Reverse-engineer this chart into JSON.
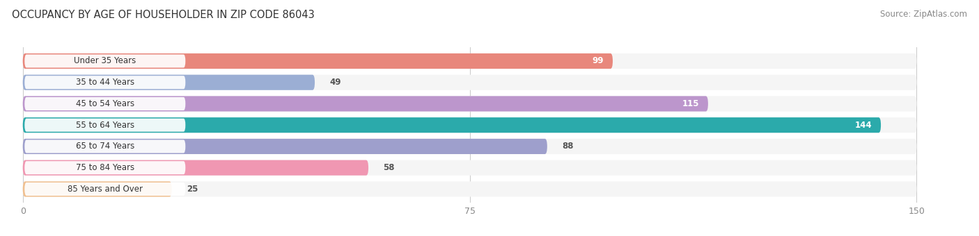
{
  "title": "OCCUPANCY BY AGE OF HOUSEHOLDER IN ZIP CODE 86043",
  "source": "Source: ZipAtlas.com",
  "categories": [
    "Under 35 Years",
    "35 to 44 Years",
    "45 to 54 Years",
    "55 to 64 Years",
    "65 to 74 Years",
    "75 to 84 Years",
    "85 Years and Over"
  ],
  "values": [
    99,
    49,
    115,
    144,
    88,
    58,
    25
  ],
  "bar_colors": [
    "#E8877C",
    "#9BAED4",
    "#BC96CC",
    "#2BAAAB",
    "#9E9FCC",
    "#F097B2",
    "#F0C090"
  ],
  "bar_bg_colors": [
    "#EAEAEA",
    "#EAEAEA",
    "#EAEAEA",
    "#EAEAEA",
    "#EAEAEA",
    "#EAEAEA",
    "#EAEAEA"
  ],
  "xlim": [
    0,
    150
  ],
  "xticks": [
    0,
    75,
    150
  ],
  "background_color": "#FFFFFF",
  "chart_bg": "#F5F5F5",
  "title_fontsize": 10.5,
  "source_fontsize": 8.5,
  "label_fontsize": 8.5,
  "value_fontsize": 8.5,
  "value_inside_bars": [
    true,
    false,
    true,
    true,
    false,
    false,
    false
  ],
  "value_text_colors_inside": [
    "#FFFFFF",
    "#555555",
    "#FFFFFF",
    "#FFFFFF",
    "#555555",
    "#555555",
    "#555555"
  ],
  "label_text_color": "#333333"
}
